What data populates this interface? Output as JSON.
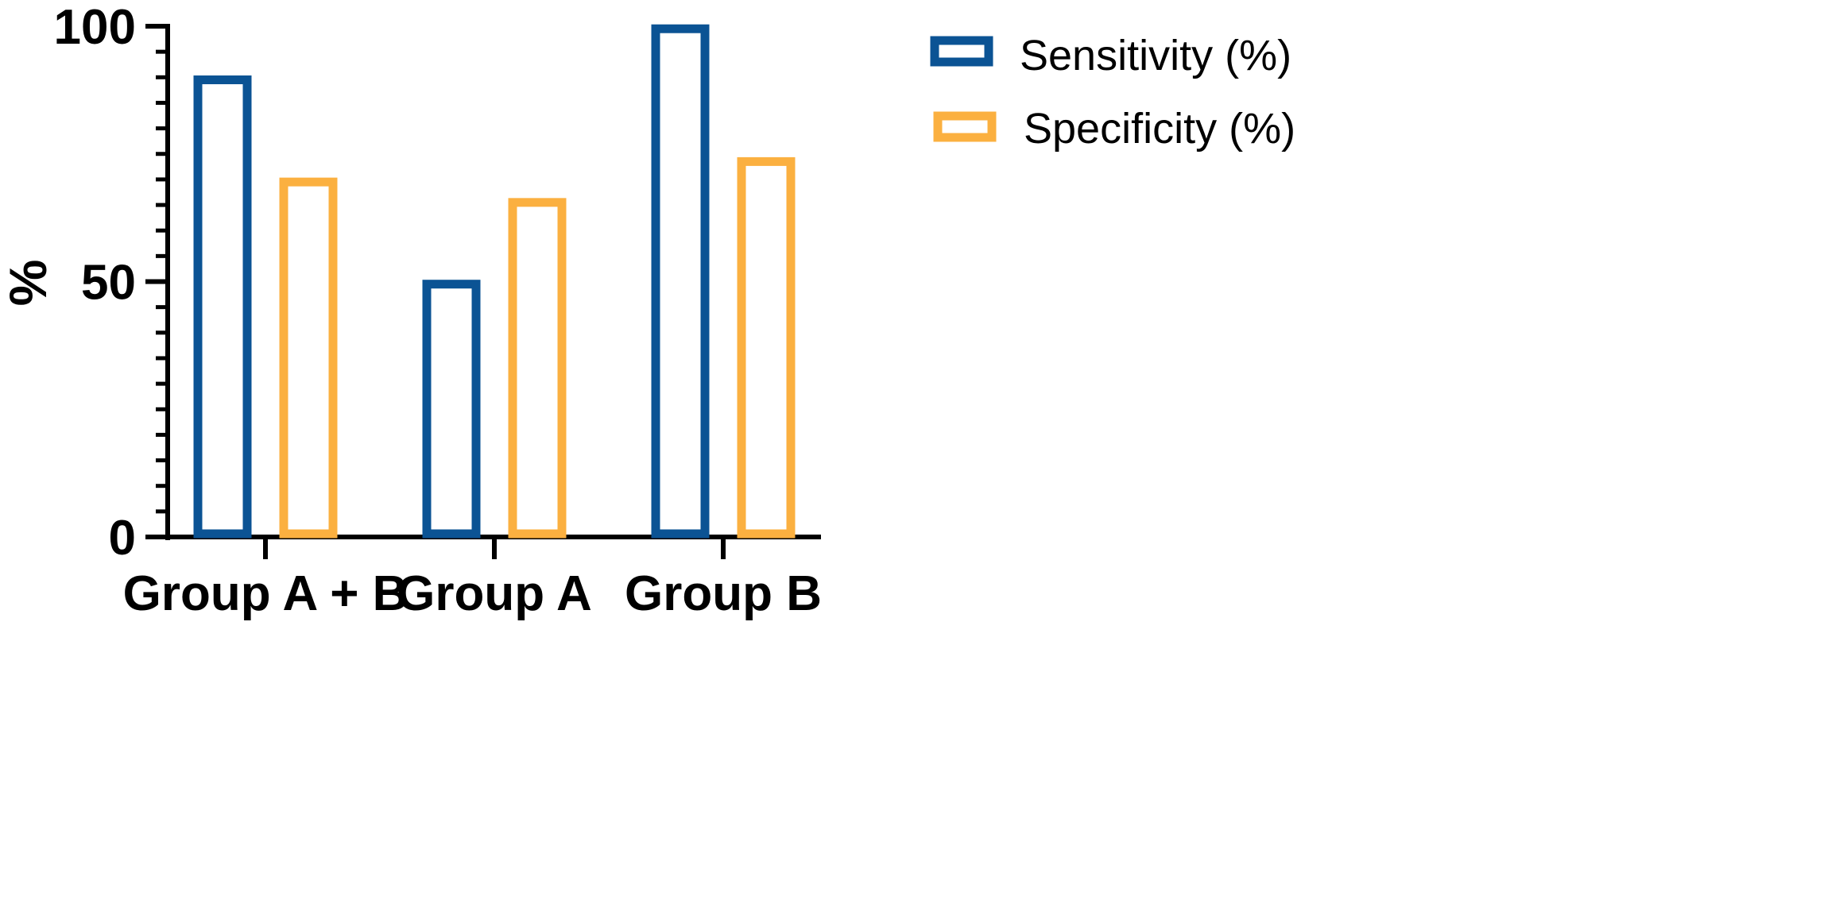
{
  "chart_data": {
    "type": "bar",
    "title": "",
    "xlabel": "",
    "ylabel": "%",
    "ylim": [
      0,
      100
    ],
    "yticks_major": [
      0,
      50,
      100
    ],
    "yticks_minor_step": 5,
    "categories": [
      "Group A + B",
      "Group A",
      "Group B"
    ],
    "series": [
      {
        "name": "Sensitivity (%)",
        "color": "#0b5394",
        "style": "outline",
        "values": [
          89.5,
          49.5,
          99.5
        ]
      },
      {
        "name": "Specificity (%)",
        "color": "#fbb040",
        "style": "outline",
        "values": [
          69.5,
          65.5,
          73.5
        ]
      }
    ],
    "legend_position": "top-right",
    "grid": false
  }
}
